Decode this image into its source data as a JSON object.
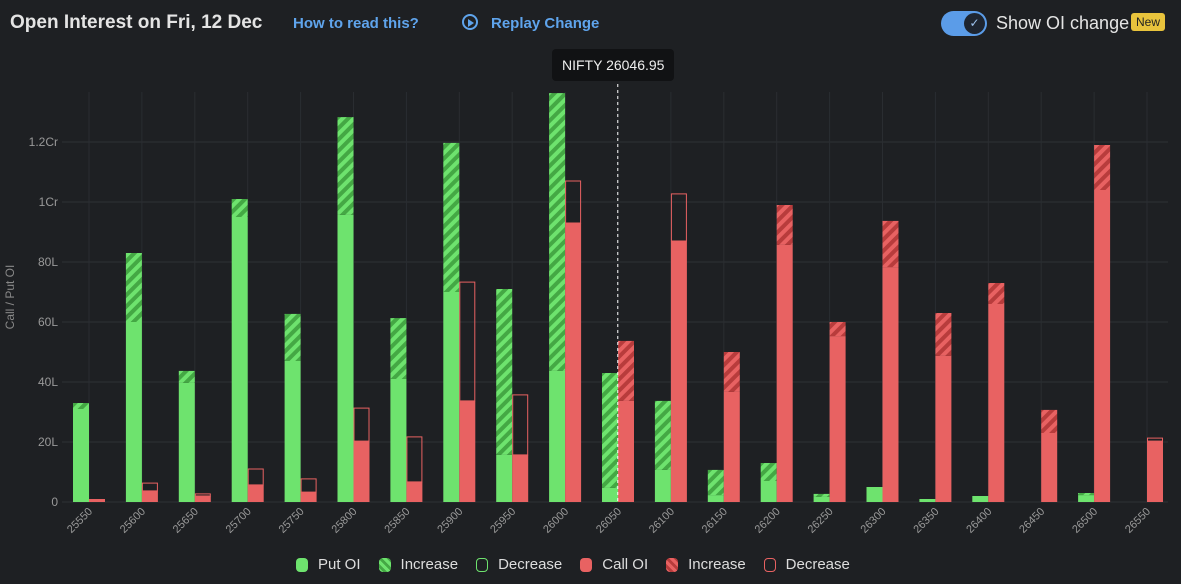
{
  "header": {
    "title": "Open Interest on Fri, 12 Dec",
    "help_link": "How to read this?",
    "replay_label": "Replay Change",
    "toggle_label": "Show OI change",
    "toggle_on": true,
    "badge": "New"
  },
  "tooltip": "NIFTY 26046.95",
  "colors": {
    "put": "#6ee36e",
    "put_hatch": "#4cb84c",
    "call": "#e86262",
    "call_hatch": "#c24444",
    "link": "#5fa4ec",
    "badge": "#e8c33c"
  },
  "chart_data": {
    "type": "bar",
    "ylabel": "Call / Put OI",
    "ylim_lakh": [
      0,
      136
    ],
    "yticks": [
      "0",
      "20L",
      "40L",
      "60L",
      "80L",
      "1Cr",
      "1.2Cr"
    ],
    "spot": 26046.95,
    "categories": [
      "25550",
      "25600",
      "25650",
      "25700",
      "25750",
      "25800",
      "25850",
      "25900",
      "25950",
      "26000",
      "26050",
      "26100",
      "26150",
      "26200",
      "26250",
      "26300",
      "26350",
      "26400",
      "26450",
      "26500",
      "26550"
    ],
    "put_oi_lakh": [
      33,
      83,
      43.7,
      101,
      62.7,
      128.3,
      61.3,
      119.7,
      71,
      136.3,
      43,
      33.7,
      10.7,
      13,
      2.7,
      5,
      1,
      2,
      0,
      3,
      0
    ],
    "put_prev_lakh": [
      31,
      60,
      39.7,
      95,
      47,
      95.7,
      41,
      70,
      15.7,
      43.7,
      4.7,
      10.7,
      2.3,
      7,
      1.7,
      5,
      1,
      2,
      0,
      2.3,
      0
    ],
    "call_oi_lakh": [
      1,
      3.7,
      2,
      5.7,
      3.3,
      20.3,
      6.7,
      33.7,
      15.7,
      93,
      53.7,
      87,
      50,
      99,
      60,
      93.7,
      63,
      73,
      30.7,
      119,
      20.3
    ],
    "call_prev_lakh": [
      1,
      6.3,
      2.7,
      11,
      7.7,
      31.3,
      21.7,
      73.3,
      35.7,
      107,
      33.7,
      102.7,
      36.7,
      85.7,
      55.3,
      78.3,
      48.7,
      66,
      23,
      104,
      21.3
    ],
    "legend": [
      "Put OI",
      "Increase",
      "Decrease",
      "Call OI",
      "Increase",
      "Decrease"
    ]
  }
}
